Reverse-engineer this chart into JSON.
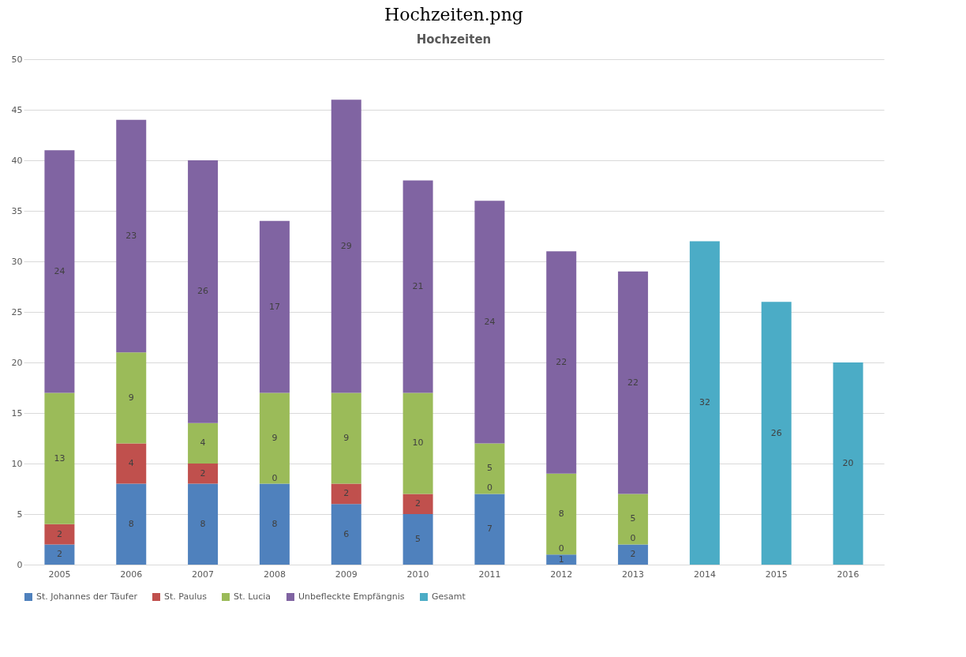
{
  "chart_data": {
    "type": "bar",
    "title": "Hochzeiten",
    "annotations": [
      "Hochzeiten.png",
      {
        "text": "0",
        "x": "2008",
        "y": 8
      },
      {
        "text": "0",
        "x": "2011",
        "y": 7
      },
      {
        "text": "0",
        "x": "2012",
        "y": 1
      },
      {
        "text": "0",
        "x": "2013",
        "y": 2
      }
    ],
    "stacked": true,
    "grid": "y",
    "legend": "bottom",
    "categories": [
      "2005",
      "2006",
      "2007",
      "2008",
      "2009",
      "2010",
      "2011",
      "2012",
      "2013",
      "2014",
      "2015",
      "2016"
    ],
    "ylim": [
      0,
      50
    ],
    "yticks": [
      0,
      5,
      10,
      15,
      20,
      25,
      30,
      35,
      40,
      45,
      50
    ],
    "series": [
      {
        "name": "St. Johannes der Täufer",
        "color": "#4f81bd",
        "values": [
          2,
          8,
          8,
          8,
          6,
          5,
          7,
          1,
          2,
          null,
          null,
          null
        ],
        "value_labels": [
          "2",
          "8",
          "8",
          "8",
          "6",
          "5",
          "7",
          "1",
          "2",
          null,
          null,
          null
        ]
      },
      {
        "name": "St. Paulus",
        "color": "#c0504d",
        "values": [
          2,
          4,
          2,
          0,
          2,
          2,
          0,
          0,
          0,
          null,
          null,
          null
        ],
        "value_labels": [
          "2",
          "4",
          "2",
          null,
          "2",
          "2",
          null,
          null,
          null,
          null,
          null,
          null
        ]
      },
      {
        "name": "St. Lucia",
        "color": "#9bbb59",
        "values": [
          13,
          9,
          4,
          9,
          9,
          10,
          5,
          8,
          5,
          null,
          null,
          null
        ],
        "value_labels": [
          "13",
          "9",
          "4",
          "9",
          "9",
          "10",
          "5",
          "8",
          "5",
          null,
          null,
          null
        ]
      },
      {
        "name": "Unbefleckte Empfängnis",
        "color": "#8064a2",
        "values": [
          24,
          23,
          26,
          17,
          29,
          21,
          24,
          22,
          22,
          null,
          null,
          null
        ],
        "value_labels": [
          "24",
          "23",
          "26",
          "17",
          "29",
          "21",
          "24",
          "22",
          "22",
          null,
          null,
          null
        ]
      },
      {
        "name": "Gesamt",
        "color": "#4bacc6",
        "values": [
          null,
          null,
          null,
          null,
          null,
          null,
          null,
          null,
          null,
          32,
          26,
          20
        ],
        "value_labels": [
          null,
          null,
          null,
          null,
          null,
          null,
          null,
          null,
          null,
          "32",
          "26",
          "20"
        ]
      }
    ]
  }
}
